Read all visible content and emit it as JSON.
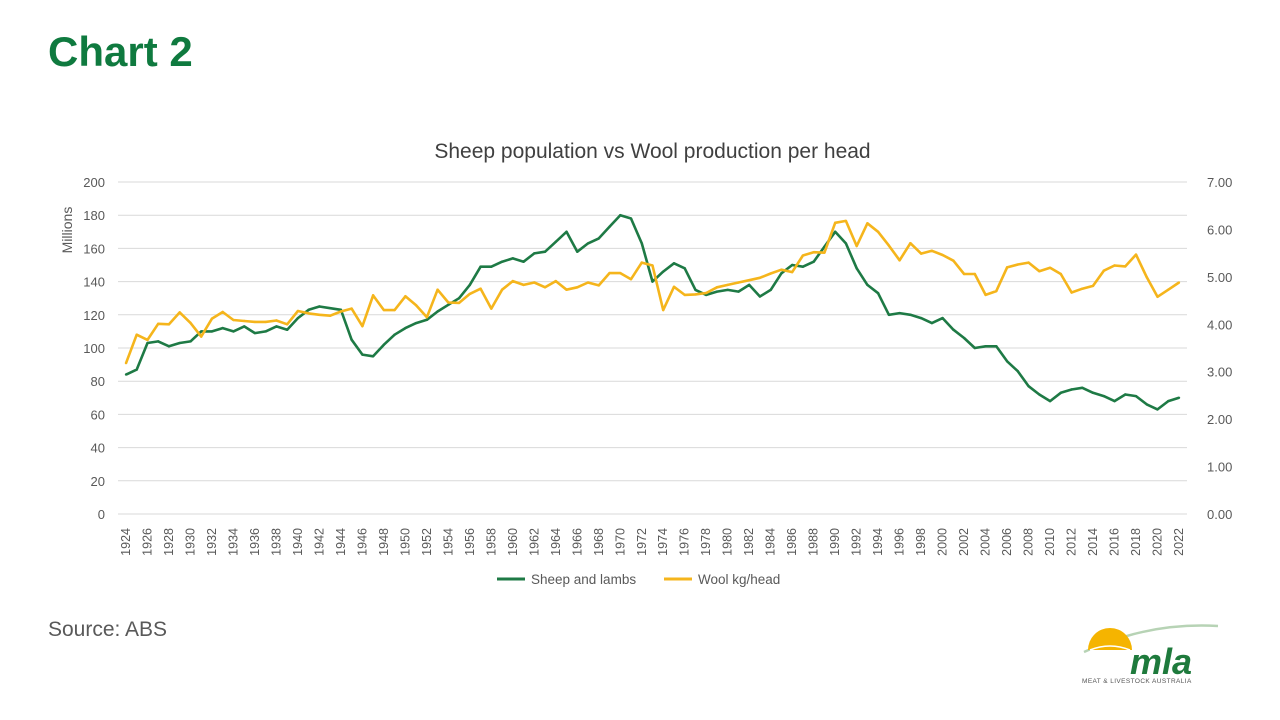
{
  "page": {
    "title": "Chart 2",
    "source": "Source: ABS"
  },
  "logo": {
    "wordmark": "mla",
    "tagline": "MEAT & LIVESTOCK AUSTRALIA",
    "colors": {
      "sun": "#f5b400",
      "text": "#1e7a3c",
      "arc": "#b7d3b5"
    }
  },
  "colors": {
    "title": "#0f7a3f",
    "sheep_series": "#1e7a45",
    "wool_series": "#f5b51c",
    "grid": "#d9d9d9",
    "axis_text": "#595959"
  },
  "chart_data": {
    "type": "line",
    "title": "Sheep population vs Wool production per head",
    "ylabel": "Millions",
    "y2label": "",
    "ylim": [
      0,
      200
    ],
    "y_ticks": [
      "0",
      "20",
      "40",
      "60",
      "80",
      "100",
      "120",
      "140",
      "160",
      "180",
      "200"
    ],
    "y2lim": [
      0,
      7
    ],
    "y2_ticks": [
      "0.00",
      "1.00",
      "2.00",
      "3.00",
      "4.00",
      "5.00",
      "6.00",
      "7.00"
    ],
    "x_ticks": [
      "1924",
      "1926",
      "1928",
      "1930",
      "1932",
      "1934",
      "1936",
      "1938",
      "1940",
      "1942",
      "1944",
      "1946",
      "1948",
      "1950",
      "1952",
      "1954",
      "1956",
      "1958",
      "1960",
      "1962",
      "1964",
      "1966",
      "1968",
      "1970",
      "1972",
      "1974",
      "1976",
      "1978",
      "1980",
      "1982",
      "1984",
      "1986",
      "1988",
      "1990",
      "1992",
      "1994",
      "1996",
      "1998",
      "2000",
      "2002",
      "2004",
      "2006",
      "2008",
      "2010",
      "2012",
      "2014",
      "2016",
      "2018",
      "2020",
      "2022"
    ],
    "legend_position": "bottom",
    "grid": true,
    "x": [
      1924,
      1925,
      1926,
      1927,
      1928,
      1929,
      1930,
      1931,
      1932,
      1933,
      1934,
      1935,
      1936,
      1937,
      1938,
      1939,
      1940,
      1941,
      1942,
      1943,
      1944,
      1945,
      1946,
      1947,
      1948,
      1949,
      1950,
      1951,
      1952,
      1953,
      1954,
      1955,
      1956,
      1957,
      1958,
      1959,
      1960,
      1961,
      1962,
      1963,
      1964,
      1965,
      1966,
      1967,
      1968,
      1969,
      1970,
      1971,
      1972,
      1973,
      1974,
      1975,
      1976,
      1977,
      1978,
      1979,
      1980,
      1981,
      1982,
      1983,
      1984,
      1985,
      1986,
      1987,
      1988,
      1989,
      1990,
      1991,
      1992,
      1993,
      1994,
      1995,
      1996,
      1997,
      1998,
      1999,
      2000,
      2001,
      2002,
      2003,
      2004,
      2005,
      2006,
      2007,
      2008,
      2009,
      2010,
      2011,
      2012,
      2013,
      2014,
      2015,
      2016,
      2017,
      2018,
      2019,
      2020,
      2021,
      2022
    ],
    "series": [
      {
        "name": "Sheep and lambs",
        "axis": "left",
        "values": [
          84,
          87,
          103,
          104,
          101,
          103,
          104,
          110,
          110,
          112,
          110,
          113,
          109,
          110,
          113,
          111,
          118,
          123,
          125,
          124,
          123,
          105,
          96,
          95,
          102,
          108,
          112,
          115,
          117,
          122,
          126,
          130,
          138,
          149,
          149,
          152,
          154,
          152,
          157,
          158,
          164,
          170,
          158,
          163,
          166,
          173,
          180,
          178,
          163,
          140,
          146,
          151,
          148,
          135,
          132,
          134,
          135,
          134,
          138,
          131,
          135,
          145,
          150,
          149,
          152,
          161,
          170,
          163,
          148,
          138,
          133,
          120,
          121,
          120,
          118,
          115,
          118,
          111,
          106,
          100,
          101,
          101,
          92,
          86,
          77,
          72,
          68,
          73,
          75,
          76,
          73,
          71,
          68,
          72,
          71,
          66,
          63,
          68,
          70
        ]
      },
      {
        "name": "Wool kg/head",
        "axis": "right",
        "values": [
          3.18,
          3.78,
          3.67,
          4.01,
          4.0,
          4.25,
          4.03,
          3.74,
          4.12,
          4.26,
          4.09,
          4.07,
          4.05,
          4.05,
          4.08,
          4.0,
          4.28,
          4.23,
          4.2,
          4.18,
          4.27,
          4.33,
          3.96,
          4.61,
          4.3,
          4.3,
          4.59,
          4.4,
          4.15,
          4.73,
          4.46,
          4.45,
          4.64,
          4.75,
          4.33,
          4.73,
          4.91,
          4.83,
          4.88,
          4.78,
          4.91,
          4.73,
          4.78,
          4.88,
          4.82,
          5.08,
          5.08,
          4.95,
          5.3,
          5.24,
          4.3,
          4.79,
          4.62,
          4.63,
          4.66,
          4.78,
          4.83,
          4.88,
          4.93,
          4.98,
          5.07,
          5.15,
          5.1,
          5.45,
          5.52,
          5.51,
          6.14,
          6.18,
          5.65,
          6.13,
          5.95,
          5.66,
          5.35,
          5.71,
          5.49,
          5.55,
          5.46,
          5.34,
          5.06,
          5.06,
          4.62,
          4.7,
          5.2,
          5.26,
          5.3,
          5.12,
          5.19,
          5.06,
          4.67,
          4.75,
          4.81,
          5.13,
          5.24,
          5.22,
          5.47,
          4.99,
          4.58,
          4.73,
          4.88
        ]
      }
    ]
  }
}
